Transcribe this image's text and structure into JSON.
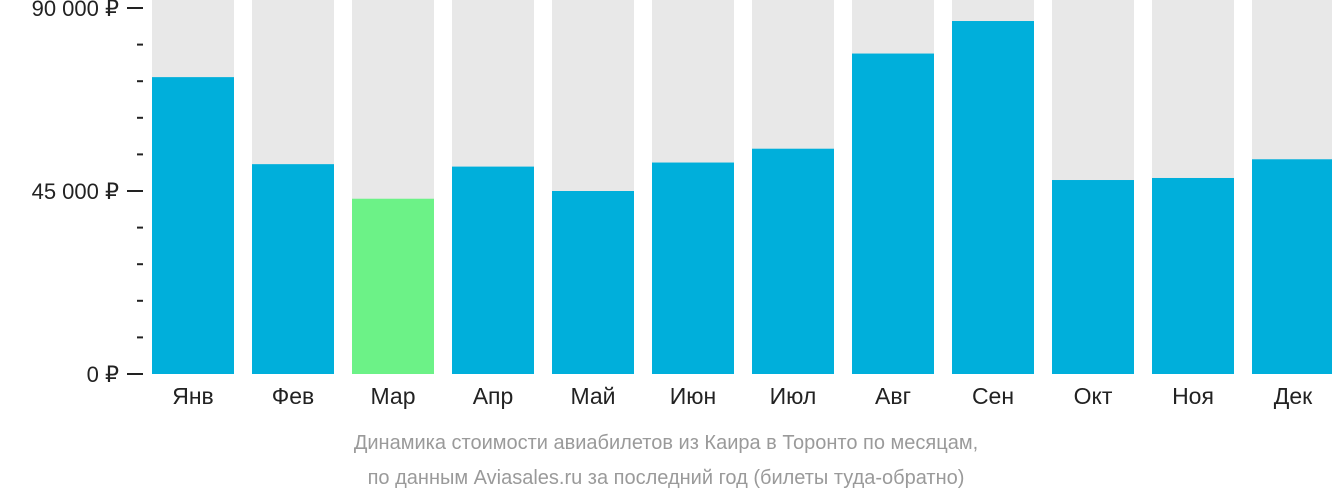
{
  "chart_data": {
    "type": "bar",
    "title": "Динамика стоимости авиабилетов из Каира в Торонто по месяцам,",
    "subtitle": "по данным Aviasales.ru за последний год (билеты туда-обратно)",
    "categories": [
      "Янв",
      "Фев",
      "Мар",
      "Апр",
      "Май",
      "Июн",
      "Июл",
      "Авг",
      "Сен",
      "Окт",
      "Ноя",
      "Дек"
    ],
    "values": [
      73000,
      51600,
      43100,
      51000,
      45000,
      52000,
      55400,
      78800,
      86800,
      47700,
      48200,
      52800
    ],
    "ylim": [
      0,
      90000
    ],
    "yticks": [
      {
        "value": 0,
        "label": "0 ₽"
      },
      {
        "value": 45000,
        "label": "45 000 ₽"
      },
      {
        "value": 90000,
        "label": "90 000 ₽"
      }
    ],
    "minor_tick_step": 9000,
    "highlight_index": 2,
    "colors": {
      "bar": "#00afdb",
      "highlight": "#6cf287",
      "background_bar": "#e8e8e8",
      "axis": "#222222",
      "caption": "#9a9a9a"
    }
  }
}
